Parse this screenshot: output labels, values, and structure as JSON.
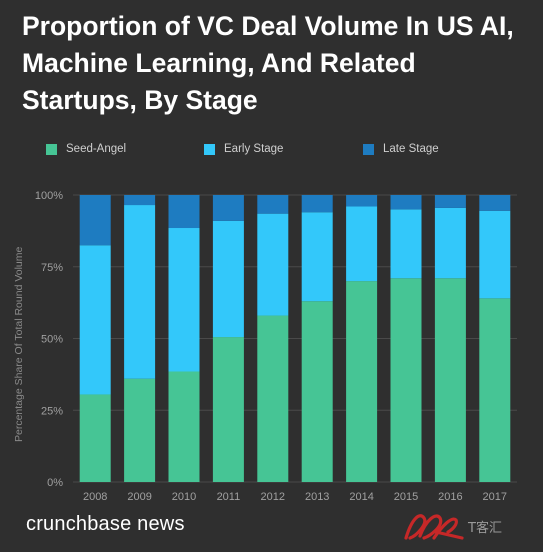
{
  "title": "Proportion of VC Deal Volume In US AI, Machine Learning, And Related Startups, By Stage",
  "footer": "crunchbase news",
  "watermark": "T客汇",
  "colors": {
    "background": "#2f2f2f",
    "seed_angel": "#46c595",
    "early_stage": "#33c8fa",
    "late_stage": "#1e7cc1",
    "grid": "#4a4a4a",
    "tick": "#a0a0a0"
  },
  "chart_data": {
    "type": "bar",
    "stacked": true,
    "categories": [
      "2008",
      "2009",
      "2010",
      "2011",
      "2012",
      "2013",
      "2014",
      "2015",
      "2016",
      "2017"
    ],
    "series": [
      {
        "name": "Seed-Angel",
        "values": [
          30.5,
          36,
          38.5,
          50.5,
          58,
          63,
          70,
          71,
          71,
          64
        ]
      },
      {
        "name": "Early Stage",
        "values": [
          52,
          60.5,
          50,
          40.5,
          35.5,
          31,
          26,
          24,
          24.5,
          30.5
        ]
      },
      {
        "name": "Late Stage",
        "values": [
          17.5,
          3.5,
          11.5,
          9,
          6.5,
          6,
          4,
          5,
          4.5,
          5.5
        ]
      }
    ],
    "ylabel": "Percentage Share Of Total Round Volume",
    "xlabel": "",
    "ylim": [
      0,
      100
    ],
    "yticks": [
      "0%",
      "25%",
      "50%",
      "75%",
      "100%"
    ],
    "ytick_values": [
      0,
      25,
      50,
      75,
      100
    ],
    "grid": true,
    "legend_position": "top"
  }
}
